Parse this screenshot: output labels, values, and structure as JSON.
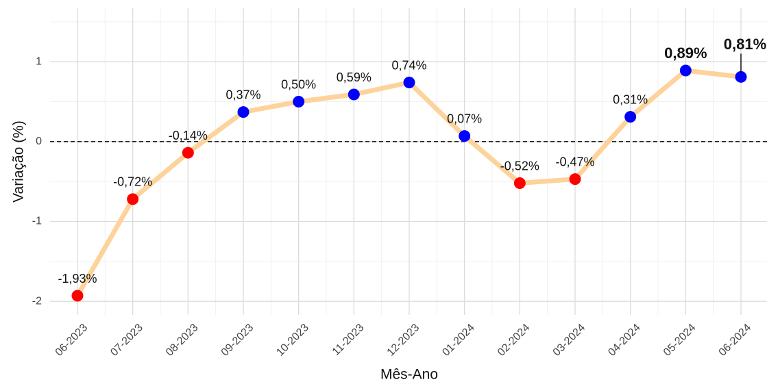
{
  "chart_data": {
    "type": "line",
    "x_label": "Mês-Ano",
    "y_label": "Variação (%)",
    "categories": [
      "06-2023",
      "07-2023",
      "08-2023",
      "09-2023",
      "10-2023",
      "11-2023",
      "12-2023",
      "01-2024",
      "02-2024",
      "03-2024",
      "04-2024",
      "05-2024",
      "06-2024"
    ],
    "values": [
      -1.93,
      -0.72,
      -0.14,
      0.37,
      0.5,
      0.59,
      0.74,
      0.07,
      -0.52,
      -0.47,
      0.31,
      0.89,
      0.81
    ],
    "value_labels": [
      "-1,93%",
      "-0,72%",
      "-0,14%",
      "0,37%",
      "0,50%",
      "0,59%",
      "0,74%",
      "0,07%",
      "-0,52%",
      "-0,47%",
      "0,31%",
      "0,89%",
      "0,81%"
    ],
    "value_label_bold": [
      false,
      false,
      false,
      false,
      false,
      false,
      false,
      false,
      false,
      false,
      false,
      true,
      true
    ],
    "point_colors": [
      "#ff0000",
      "#ff0000",
      "#ff0000",
      "#0000ff",
      "#0000ff",
      "#0000ff",
      "#0000ff",
      "#0000ff",
      "#ff0000",
      "#ff0000",
      "#0000ff",
      "#0000ff",
      "#0000ff"
    ],
    "line_color": "#fdd39b",
    "reference_line": 0,
    "ylim": [
      -2.17,
      1.67
    ],
    "yticks": [
      -2,
      -1,
      0,
      1
    ],
    "grid": true
  }
}
